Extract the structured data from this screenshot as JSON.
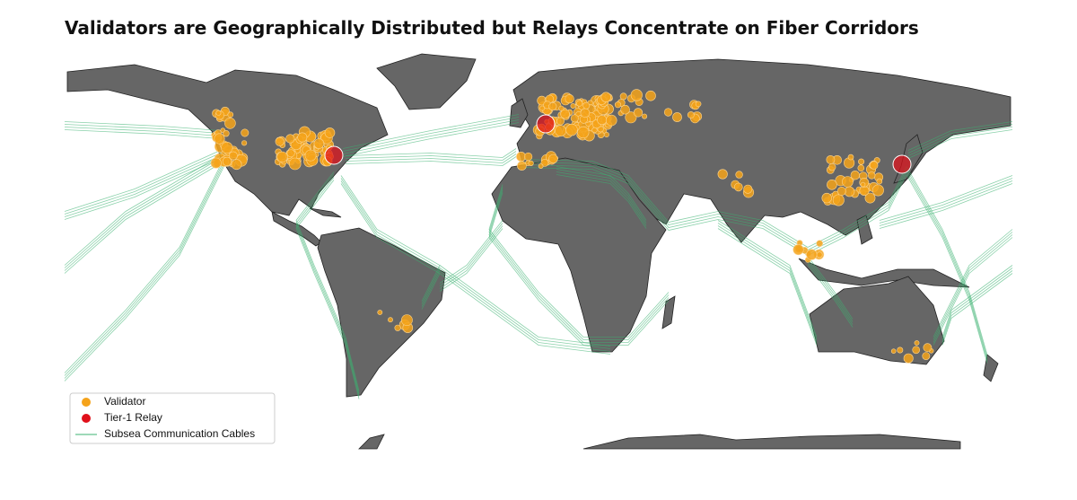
{
  "title": "Validators are Geographically Distributed but Relays Concentrate on Fiber Corridors",
  "legend": [
    {
      "label": "Validator",
      "color": "#f5a31a"
    },
    {
      "label": "Tier-1 Relay",
      "color": "#e0101a"
    },
    {
      "label": "Subsea Communication Cables",
      "color": "#3cb371"
    }
  ]
}
